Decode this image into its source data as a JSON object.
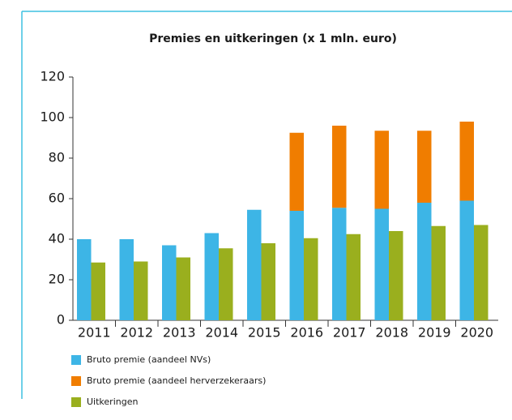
{
  "chart_data": {
    "type": "bar",
    "title": "Premies en uitkeringen (x 1 mln. euro)",
    "categories": [
      "2011",
      "2012",
      "2013",
      "2014",
      "2015",
      "2016",
      "2017",
      "2018",
      "2019",
      "2020"
    ],
    "series": [
      {
        "name": "Bruto premie (aandeel NVs)",
        "color": "#3db5e6",
        "stack": "premie",
        "values": [
          40,
          40,
          37,
          43,
          54.5,
          54,
          55.5,
          55,
          58,
          59
        ]
      },
      {
        "name": "Bruto premie (aandeel herverzekeraars)",
        "color": "#f07d00",
        "stack": "premie",
        "values": [
          0,
          0,
          0,
          0,
          0,
          38.5,
          40.5,
          38.5,
          35.5,
          39
        ]
      },
      {
        "name": "Uitkeringen",
        "color": "#9aaf1e",
        "stack": "uitkeringen",
        "values": [
          28.5,
          29,
          31,
          35.5,
          38,
          40.5,
          42.5,
          44,
          46.5,
          47
        ]
      }
    ],
    "ylim": [
      0,
      120
    ],
    "yticks": [
      0,
      20,
      40,
      60,
      80,
      100,
      120
    ],
    "grid": false
  }
}
